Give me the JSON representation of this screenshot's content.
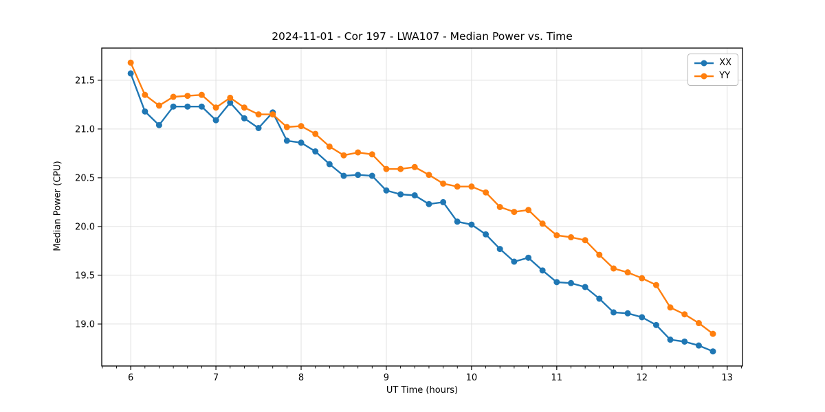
{
  "chart": {
    "title": "2024-11-01 - Cor 197 - LWA107 - Median Power vs. Time",
    "xlabel": "UT Time (hours)",
    "ylabel": "Median Power (CPU)"
  },
  "chart_data": {
    "type": "line",
    "title": "2024-11-01 - Cor 197 - LWA107 - Median Power vs. Time",
    "xlabel": "UT Time (hours)",
    "ylabel": "Median Power (CPU)",
    "xlim": [
      5.66,
      13.18
    ],
    "ylim": [
      18.57,
      21.83
    ],
    "xticks": [
      6,
      7,
      8,
      9,
      10,
      11,
      12,
      13
    ],
    "yticks": [
      19.0,
      19.5,
      20.0,
      20.5,
      21.0,
      21.5
    ],
    "minor_xtick_step": 0.16667,
    "grid": true,
    "legend_position": "upper right",
    "background": "#ffffff",
    "grid_color": "#e0e0e0",
    "spine_color": "#000000",
    "x": [
      6.0,
      6.167,
      6.333,
      6.5,
      6.667,
      6.833,
      7.0,
      7.167,
      7.333,
      7.5,
      7.667,
      7.833,
      8.0,
      8.167,
      8.333,
      8.5,
      8.667,
      8.833,
      9.0,
      9.167,
      9.333,
      9.5,
      9.667,
      9.833,
      10.0,
      10.167,
      10.333,
      10.5,
      10.667,
      10.833,
      11.0,
      11.167,
      11.333,
      11.5,
      11.667,
      11.833,
      12.0,
      12.167,
      12.333,
      12.5,
      12.667,
      12.833
    ],
    "series": [
      {
        "name": "XX",
        "color": "#1f77b4",
        "values": [
          21.57,
          21.18,
          21.04,
          21.23,
          21.23,
          21.23,
          21.09,
          21.27,
          21.11,
          21.01,
          21.17,
          20.88,
          20.86,
          20.77,
          20.64,
          20.52,
          20.53,
          20.52,
          20.37,
          20.33,
          20.32,
          20.23,
          20.25,
          20.05,
          20.02,
          19.92,
          19.77,
          19.64,
          19.68,
          19.55,
          19.43,
          19.42,
          19.38,
          19.26,
          19.12,
          19.11,
          19.07,
          18.99,
          18.84,
          18.82,
          18.78,
          18.72
        ]
      },
      {
        "name": "YY",
        "color": "#ff7f0e",
        "values": [
          21.68,
          21.35,
          21.24,
          21.33,
          21.34,
          21.35,
          21.22,
          21.32,
          21.22,
          21.15,
          21.15,
          21.02,
          21.03,
          20.95,
          20.82,
          20.73,
          20.76,
          20.74,
          20.59,
          20.59,
          20.61,
          20.53,
          20.44,
          20.41,
          20.41,
          20.35,
          20.2,
          20.15,
          20.17,
          20.03,
          19.91,
          19.89,
          19.86,
          19.71,
          19.57,
          19.53,
          19.47,
          19.4,
          19.17,
          19.1,
          19.01,
          18.9
        ]
      }
    ]
  }
}
